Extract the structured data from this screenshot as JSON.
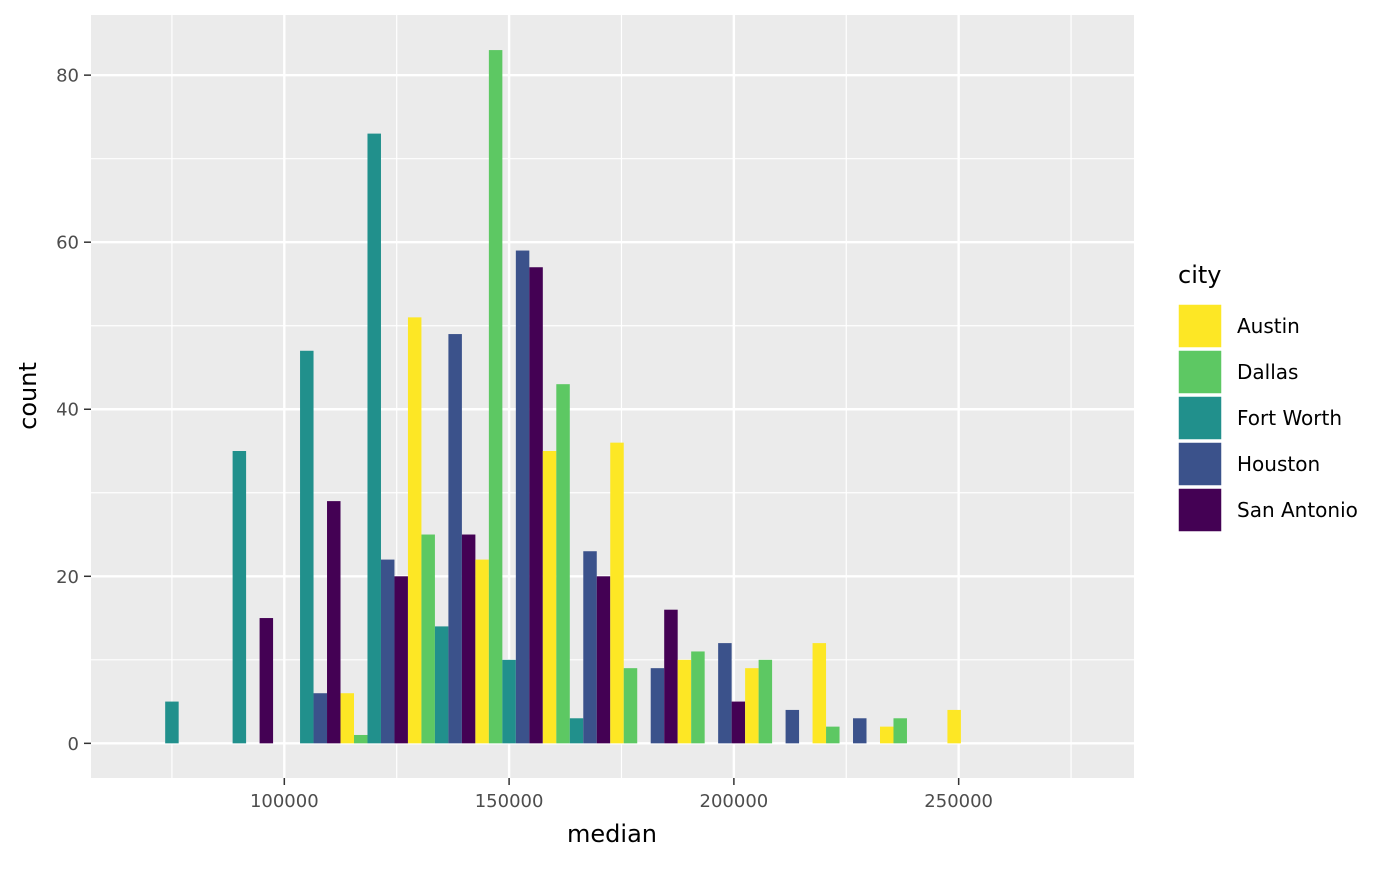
{
  "chart_data": {
    "type": "bar",
    "title": "",
    "xlabel": "median",
    "ylabel": "count",
    "xlim": [
      57000,
      289000
    ],
    "ylim": [
      -4.15,
      87.2
    ],
    "x_ticks": [
      100000,
      150000,
      200000,
      250000
    ],
    "y_ticks": [
      0,
      20,
      40,
      60,
      80
    ],
    "x_tick_labels": [
      "100000",
      "150000",
      "200000",
      "250000"
    ],
    "y_tick_labels": [
      "0",
      "20",
      "40",
      "60",
      "80"
    ],
    "grid": true,
    "bin_width": 15000,
    "bin_centers": [
      75000,
      90000,
      105000,
      120000,
      135000,
      150000,
      165000,
      180000,
      195000,
      210000,
      225000,
      240000,
      255000,
      270000
    ],
    "position": "dodge",
    "legend": {
      "title": "city",
      "placement": "right"
    },
    "series": [
      {
        "name": "Austin",
        "color": "#FDE725",
        "values": [
          0,
          0,
          0,
          6,
          51,
          22,
          35,
          36,
          10,
          9,
          12,
          2,
          4,
          0
        ]
      },
      {
        "name": "Dallas",
        "color": "#5DC863",
        "values": [
          0,
          0,
          0,
          1,
          25,
          83,
          43,
          9,
          11,
          10,
          2,
          3,
          0,
          0
        ]
      },
      {
        "name": "Fort Worth",
        "color": "#21908C",
        "values": [
          5,
          35,
          47,
          73,
          14,
          10,
          3,
          0,
          0,
          0,
          0,
          0,
          0,
          0
        ]
      },
      {
        "name": "Houston",
        "color": "#3B528B",
        "values": [
          0,
          0,
          6,
          22,
          49,
          59,
          23,
          9,
          12,
          4,
          3,
          0,
          0,
          0
        ]
      },
      {
        "name": "San Antonio",
        "color": "#440154",
        "values": [
          0,
          15,
          29,
          20,
          25,
          57,
          20,
          16,
          5,
          0,
          0,
          0,
          0,
          0
        ]
      }
    ],
    "colors": {
      "panel": "#EBEBEB",
      "grid_major": "#FFFFFF"
    }
  }
}
